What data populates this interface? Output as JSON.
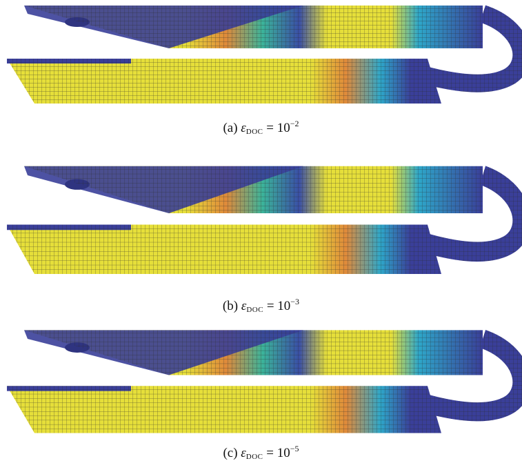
{
  "figure": {
    "panels": [
      {
        "label": "(a)",
        "symbol": "ε",
        "subscript": "DOC",
        "relation": "= 10",
        "exponent": "−2"
      },
      {
        "label": "(b)",
        "symbol": "ε",
        "subscript": "DOC",
        "relation": "= 10",
        "exponent": "−3"
      },
      {
        "label": "(c)",
        "symbol": "ε",
        "subscript": "DOC",
        "relation": "= 10",
        "exponent": "−5"
      }
    ]
  }
}
